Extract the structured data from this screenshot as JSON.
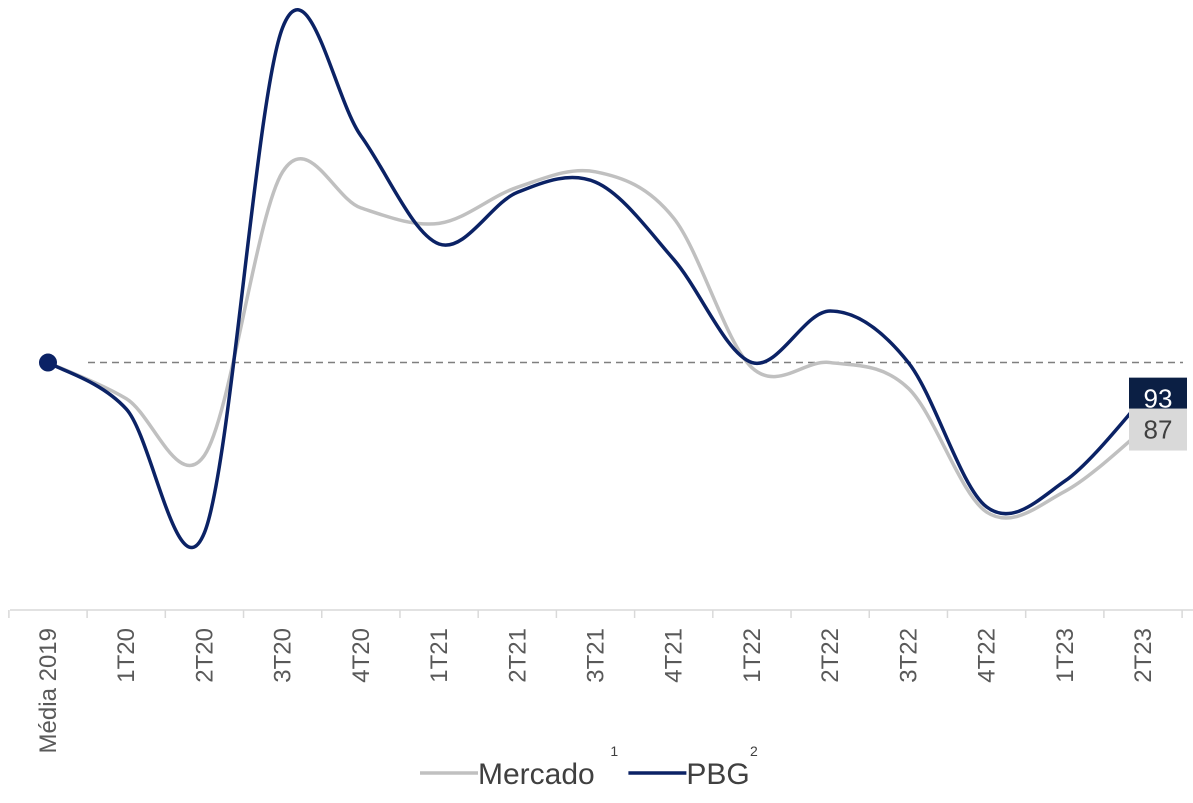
{
  "chart_data": {
    "type": "line",
    "categories": [
      "Média 2019",
      "1T20",
      "2T20",
      "3T20",
      "4T20",
      "1T21",
      "2T21",
      "3T21",
      "4T21",
      "1T22",
      "2T22",
      "3T22",
      "4T22",
      "1T23",
      "2T23"
    ],
    "series": [
      {
        "name": "Mercado",
        "footnote": "1",
        "color": "#c0c0c0",
        "values": [
          100,
          93,
          82,
          137,
          130,
          127,
          134,
          137,
          128,
          99,
          100,
          95,
          71,
          75,
          87
        ]
      },
      {
        "name": "PBG",
        "footnote": "2",
        "color": "#0b2265",
        "values": [
          100,
          91,
          67,
          165,
          144,
          123,
          133,
          135,
          120,
          100,
          110,
          100,
          72,
          77,
          93
        ]
      }
    ],
    "reference_line": 100,
    "end_labels": [
      {
        "series": "PBG",
        "text": "93",
        "bg": "#0b1f44",
        "fg": "#ffffff"
      },
      {
        "series": "Mercado",
        "text": "87",
        "bg": "#d9d9d9",
        "fg": "#404040"
      }
    ],
    "ylim": [
      52,
      168
    ],
    "grid": false,
    "legend_position": "bottom-center"
  }
}
